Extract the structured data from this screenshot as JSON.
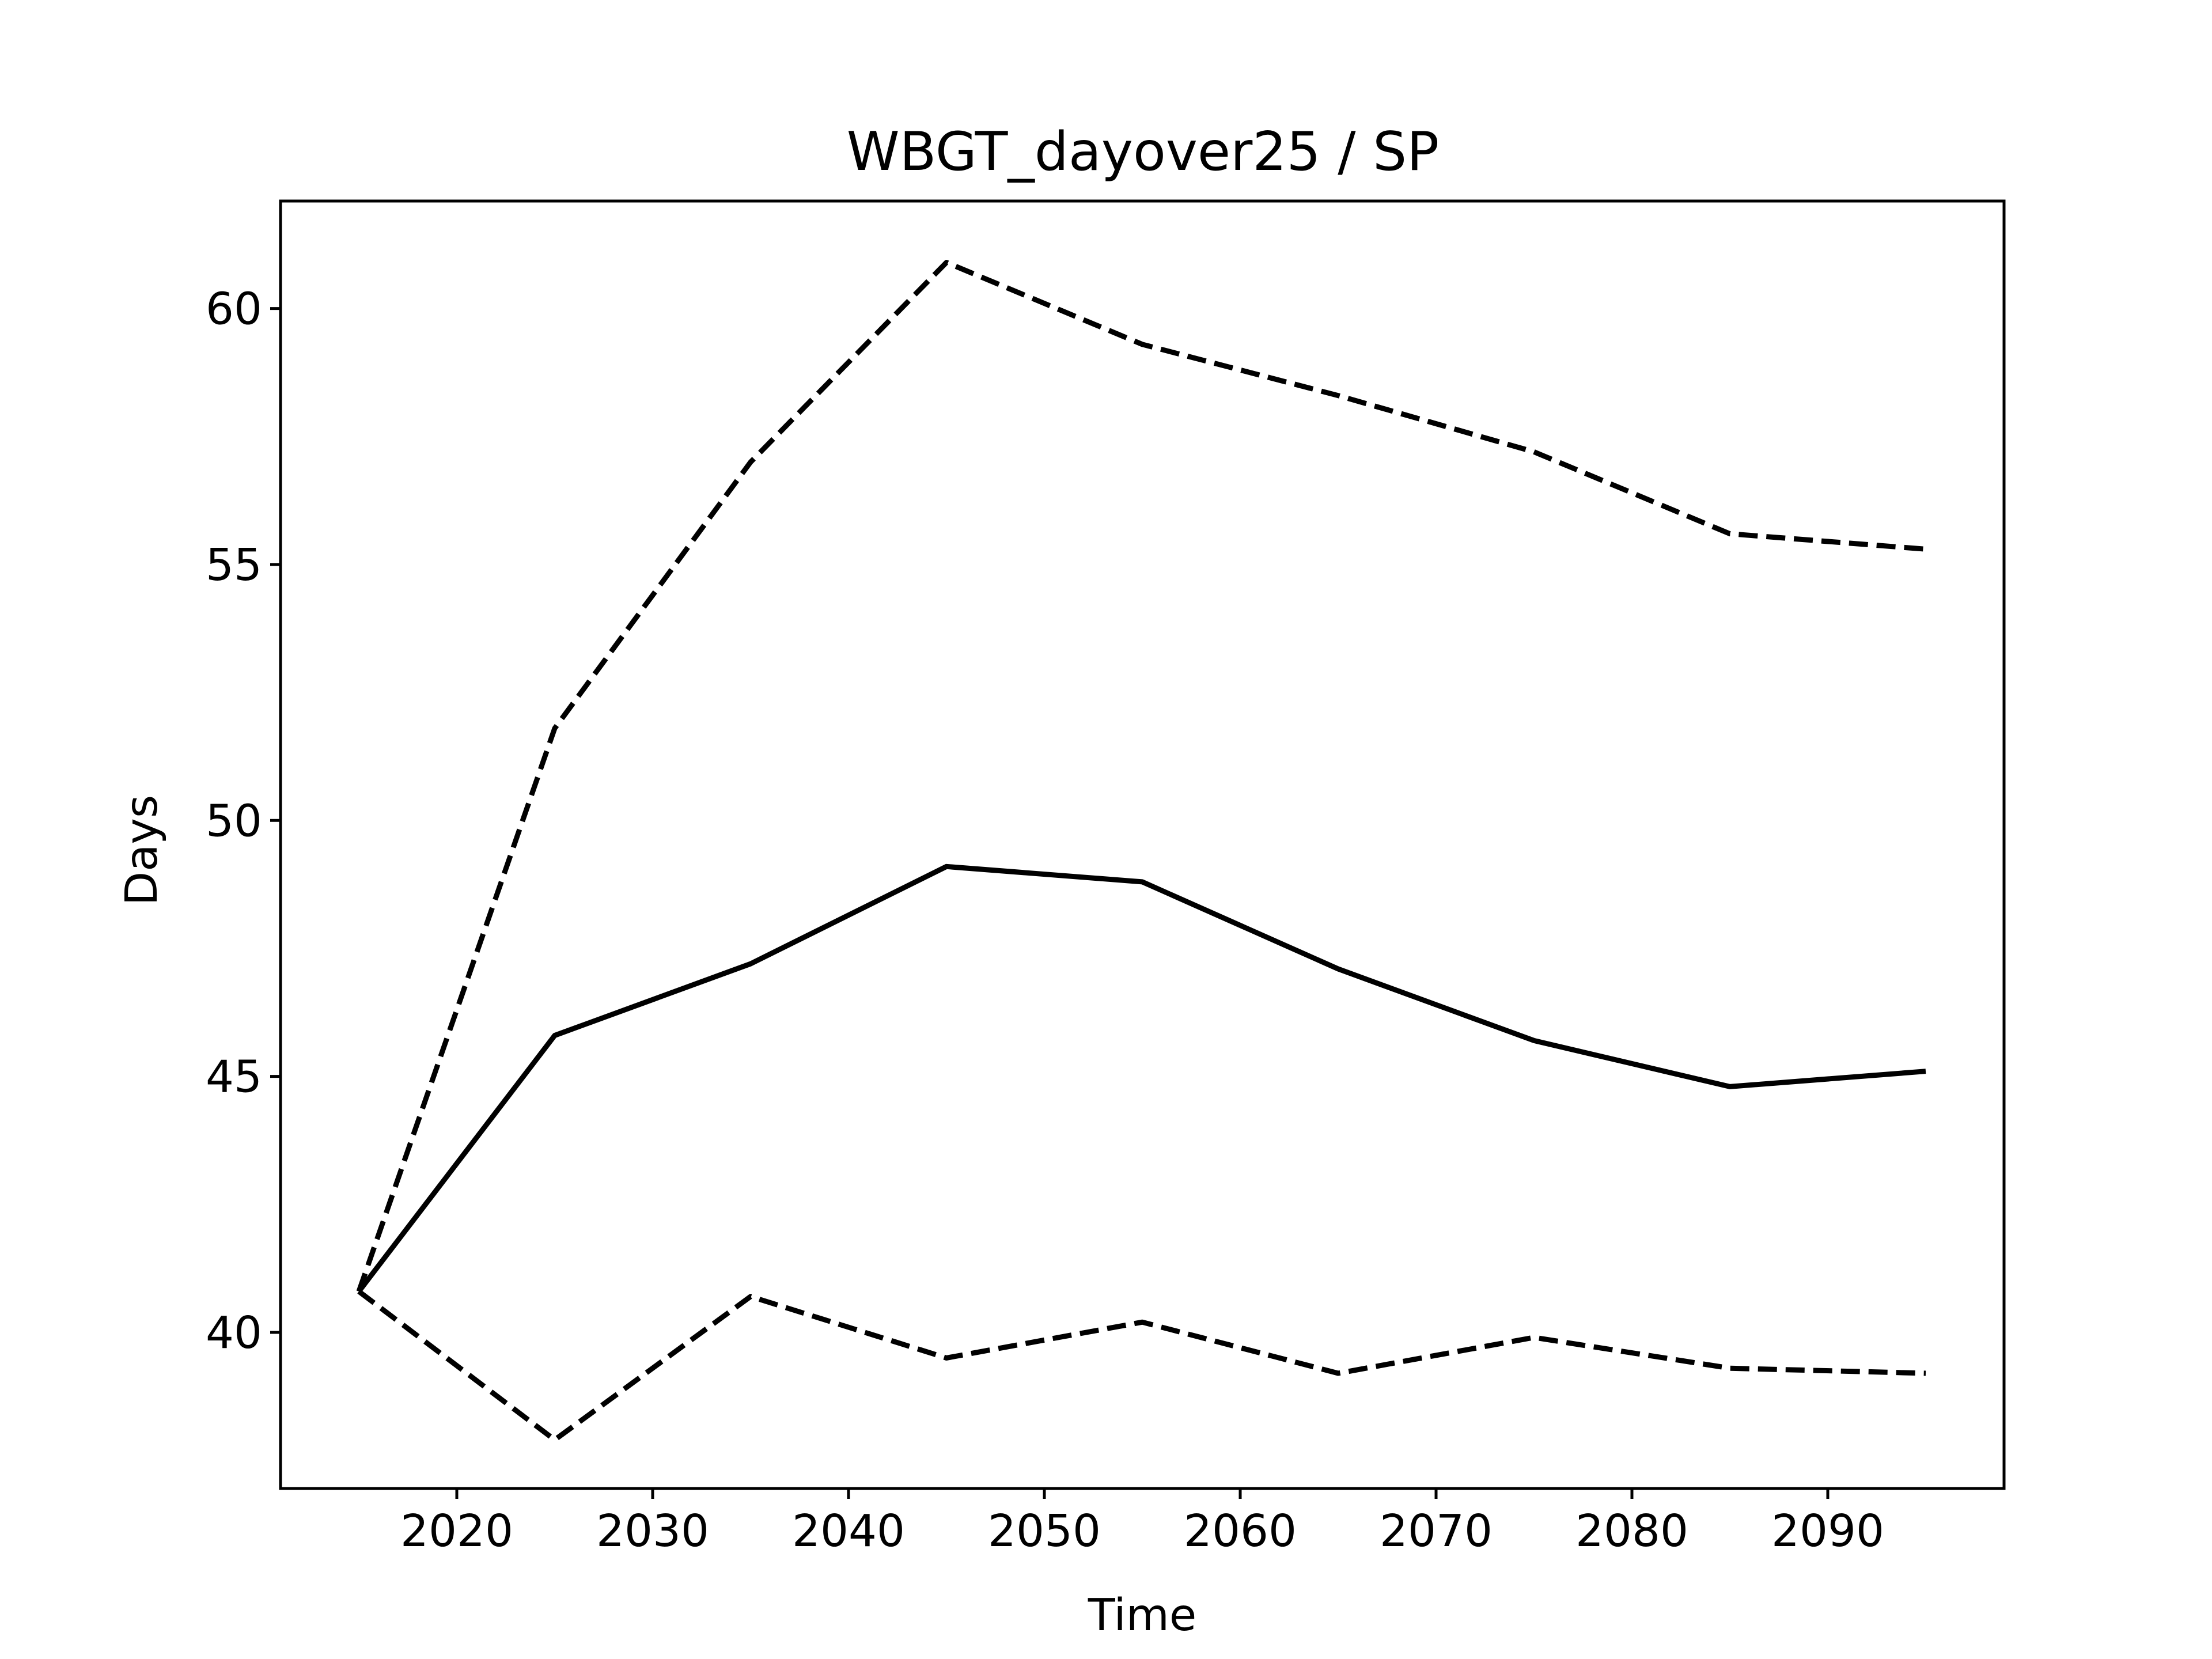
{
  "chart_data": {
    "type": "line",
    "title": "WBGT_dayover25 / SP",
    "xlabel": "Time",
    "ylabel": "Days",
    "xlim": [
      2011,
      2099
    ],
    "ylim": [
      36.95,
      62.1
    ],
    "xticks": [
      2020,
      2030,
      2040,
      2050,
      2060,
      2070,
      2080,
      2090
    ],
    "yticks": [
      40,
      45,
      50,
      55,
      60
    ],
    "grid": false,
    "legend": "none",
    "x": [
      2015,
      2025,
      2035,
      2045,
      2055,
      2065,
      2075,
      2085,
      2095
    ],
    "series": [
      {
        "style": "solid",
        "color": "#000000",
        "values": [
          40.8,
          45.8,
          47.2,
          49.1,
          48.8,
          47.1,
          45.7,
          44.8,
          45.1
        ]
      },
      {
        "style": "dashed",
        "color": "#000000",
        "values": [
          40.8,
          51.8,
          57.0,
          60.9,
          59.3,
          58.3,
          57.2,
          55.6,
          55.3
        ]
      },
      {
        "style": "dashed",
        "color": "#000000",
        "values": [
          40.8,
          37.9,
          40.7,
          39.5,
          40.2,
          39.2,
          39.9,
          39.3,
          39.2
        ]
      }
    ]
  }
}
